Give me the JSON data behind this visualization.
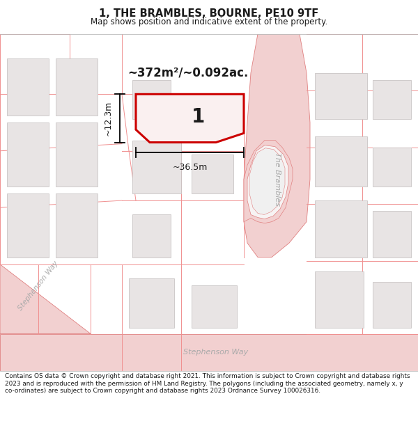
{
  "title": "1, THE BRAMBLES, BOURNE, PE10 9TF",
  "subtitle": "Map shows position and indicative extent of the property.",
  "footer": "Contains OS data © Crown copyright and database right 2021. This information is subject to Crown copyright and database rights 2023 and is reproduced with the permission of HM Land Registry. The polygons (including the associated geometry, namely x, y co-ordinates) are subject to Crown copyright and database rights 2023 Ordnance Survey 100026316.",
  "area_label": "~372m²/~0.092ac.",
  "width_label": "~36.5m",
  "height_label": "~12.3m",
  "plot_number": "1",
  "map_bg": "#f7f3f3",
  "road_color": "#f2d0d0",
  "road_outline": "#e08080",
  "building_fill": "#e8e4e4",
  "building_outline": "#c8c4c4",
  "plot_fill": "#faf0f0",
  "plot_outline_red": "#cc0000",
  "parcel_outline": "#f09090",
  "text_color": "#1a1a1a",
  "road_text_color": "#aaaaaa"
}
